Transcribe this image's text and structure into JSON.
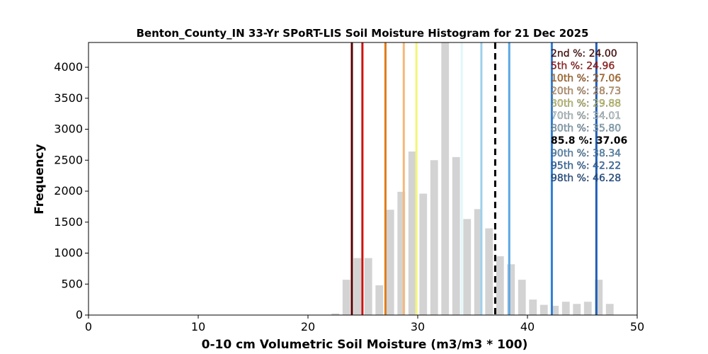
{
  "chart_data": {
    "type": "bar",
    "title": "Benton_County_IN 33-Yr SPoRT-LIS Soil Moisture Histogram for 21 Dec 2025",
    "xlabel": "0-10 cm Volumetric Soil Moisture (m3/m3 * 100)",
    "ylabel": "Frequency",
    "xlim": [
      0,
      50
    ],
    "ylim": [
      0,
      4400
    ],
    "xticks": [
      0,
      10,
      20,
      30,
      40,
      50
    ],
    "yticks": [
      0,
      500,
      1000,
      1500,
      2000,
      2500,
      3000,
      3500,
      4000
    ],
    "bar_color": "#d3d3d3",
    "bars": [
      {
        "x": 22.5,
        "y": 25
      },
      {
        "x": 23.5,
        "y": 570
      },
      {
        "x": 24.5,
        "y": 920
      },
      {
        "x": 25.5,
        "y": 920
      },
      {
        "x": 26.5,
        "y": 480
      },
      {
        "x": 27.5,
        "y": 1700
      },
      {
        "x": 28.5,
        "y": 1990
      },
      {
        "x": 29.5,
        "y": 2640
      },
      {
        "x": 30.5,
        "y": 1960
      },
      {
        "x": 31.5,
        "y": 2500
      },
      {
        "x": 32.5,
        "y": 4400
      },
      {
        "x": 33.5,
        "y": 2550
      },
      {
        "x": 34.5,
        "y": 1550
      },
      {
        "x": 35.5,
        "y": 1710
      },
      {
        "x": 36.5,
        "y": 1400
      },
      {
        "x": 37.5,
        "y": 950
      },
      {
        "x": 38.5,
        "y": 820
      },
      {
        "x": 39.5,
        "y": 570
      },
      {
        "x": 40.5,
        "y": 250
      },
      {
        "x": 41.5,
        "y": 165
      },
      {
        "x": 42.5,
        "y": 150
      },
      {
        "x": 43.5,
        "y": 215
      },
      {
        "x": 44.5,
        "y": 180
      },
      {
        "x": 45.5,
        "y": 215
      },
      {
        "x": 46.5,
        "y": 570
      },
      {
        "x": 47.5,
        "y": 180
      }
    ],
    "percentiles": [
      {
        "label": "2nd %: 24.00",
        "value": 24.0,
        "color": "#5c0000",
        "dashed": false
      },
      {
        "label": "5th %: 24.96",
        "value": 24.96,
        "color": "#cc1111",
        "dashed": false
      },
      {
        "label": "10th %: 27.06",
        "value": 27.06,
        "color": "#e07b1a",
        "dashed": false
      },
      {
        "label": "20th %: 28.73",
        "value": 28.73,
        "color": "#f6b97a",
        "dashed": false
      },
      {
        "label": "30th %: 29.88",
        "value": 29.88,
        "color": "#f5f57a",
        "dashed": false
      },
      {
        "label": "70th %: 34.01",
        "value": 34.01,
        "color": "#e0f7fb",
        "dashed": false
      },
      {
        "label": "80th %: 35.80",
        "value": 35.8,
        "color": "#9fd0ec",
        "dashed": false
      },
      {
        "label": "85.8 %: 37.06",
        "value": 37.06,
        "color": "#000000",
        "dashed": true
      },
      {
        "label": "90th %: 38.34",
        "value": 38.34,
        "color": "#5aa7e3",
        "dashed": false
      },
      {
        "label": "95th %: 42.22",
        "value": 42.22,
        "color": "#2f7fd6",
        "dashed": false
      },
      {
        "label": "98th %: 46.28",
        "value": 46.28,
        "color": "#1f5fb8",
        "dashed": false
      }
    ],
    "legend_placement": "top-right",
    "grid": false
  }
}
